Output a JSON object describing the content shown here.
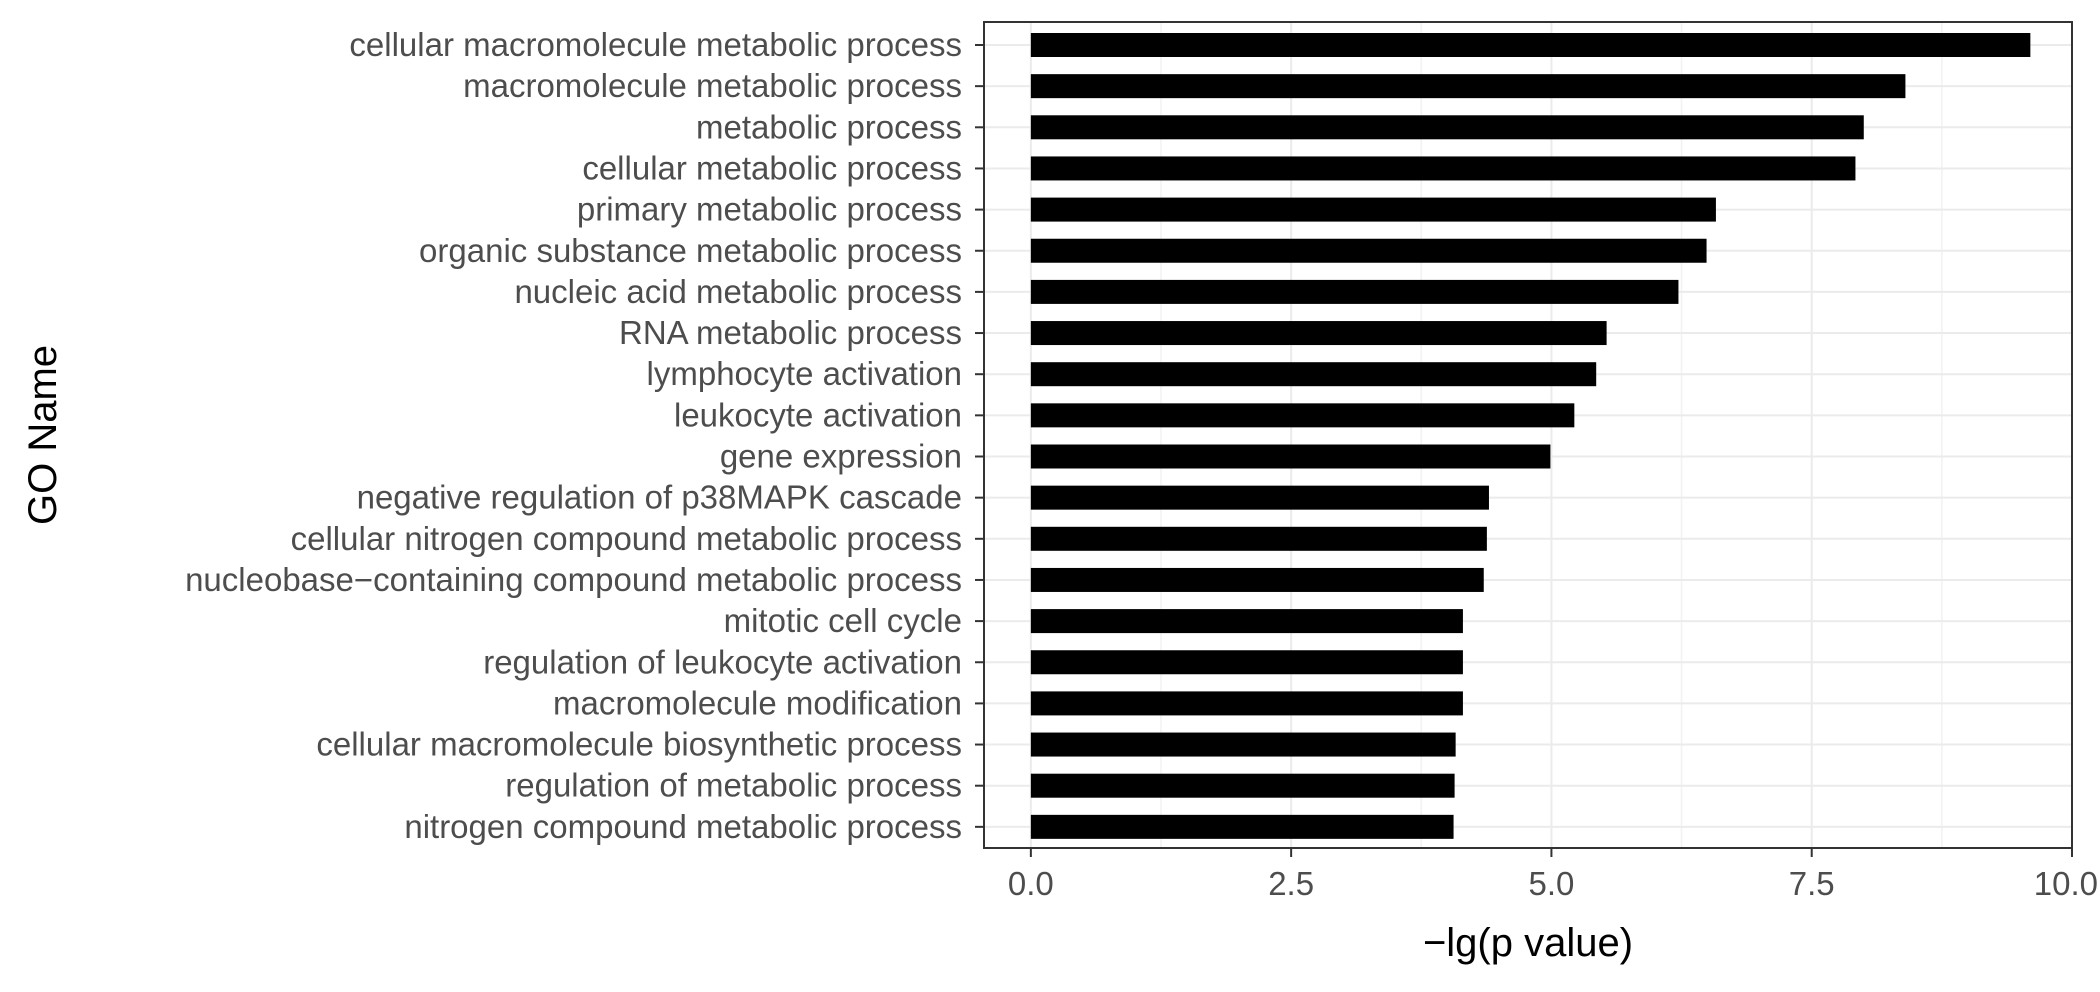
{
  "chart_data": {
    "type": "bar",
    "orientation": "horizontal",
    "categories": [
      "cellular macromolecule metabolic process",
      "macromolecule metabolic process",
      "metabolic process",
      "cellular metabolic process",
      "primary metabolic process",
      "organic substance metabolic process",
      "nucleic acid metabolic process",
      "RNA metabolic process",
      "lymphocyte activation",
      "leukocyte activation",
      "gene expression",
      "negative regulation of p38MAPK cascade",
      "cellular nitrogen compound metabolic process",
      "nucleobase−containing compound metabolic process",
      "mitotic cell cycle",
      "regulation of leukocyte activation",
      "macromolecule modification",
      "cellular macromolecule biosynthetic process",
      "regulation of metabolic process",
      "nitrogen compound metabolic process"
    ],
    "values": [
      9.6,
      8.4,
      8.0,
      7.92,
      6.58,
      6.49,
      6.22,
      5.53,
      5.43,
      5.22,
      4.99,
      4.4,
      4.38,
      4.35,
      4.15,
      4.15,
      4.15,
      4.08,
      4.07,
      4.06
    ],
    "xlabel": "−lg(p value)",
    "ylabel": "GO Name",
    "xlim": [
      -0.45,
      10.0
    ],
    "x_ticks": [
      "0.0",
      "2.5",
      "5.0",
      "7.5",
      "10.0"
    ],
    "x_tick_values": [
      0,
      2.5,
      5.0,
      7.5,
      10.0
    ],
    "grid": true,
    "colors": {
      "bar": "#000000",
      "grid_major": "#ebebeb",
      "grid_minor": "#f2f2f2",
      "panel_border": "#333333",
      "tick_label": "#4d4d4d"
    }
  }
}
